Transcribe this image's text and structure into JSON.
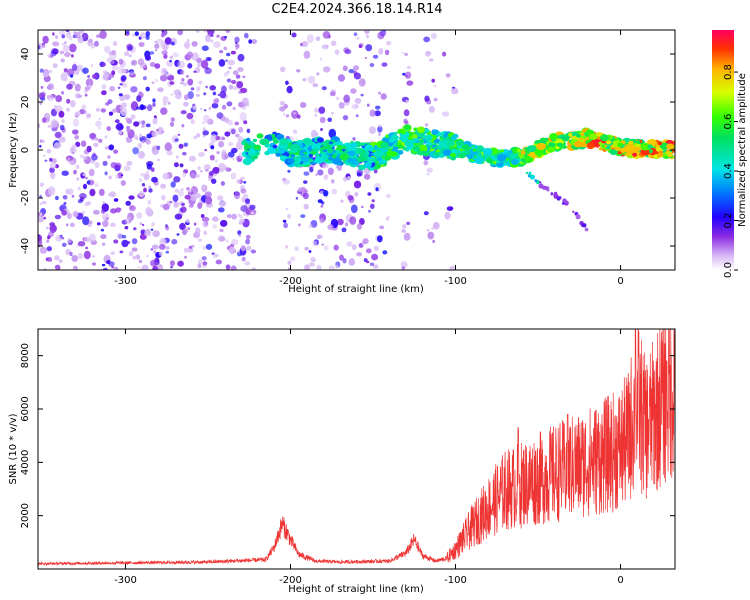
{
  "title": "C2E4.2024.366.18.14.R14",
  "chart_data": [
    {
      "type": "heatmap",
      "name": "spectrogram",
      "xlabel": "Height of straight line (km)",
      "ylabel": "Frequency (Hz)",
      "xlim": [
        -353,
        33
      ],
      "ylim": [
        -50,
        50
      ],
      "xticks": [
        -300,
        -200,
        -100,
        0
      ],
      "yticks": [
        -40,
        -20,
        0,
        20,
        40
      ],
      "colorbar": {
        "label": "Normalized spectral amplitude",
        "range": [
          0,
          0.97
        ],
        "ticks": [
          0.0,
          0.2,
          0.4,
          0.6,
          0.8
        ]
      },
      "gaps_x": [
        [
          -222,
          -205
        ],
        [
          -140,
          -132
        ],
        [
          -127,
          -118
        ]
      ],
      "ridge": [
        {
          "x": -225,
          "y": 0
        },
        {
          "x": -210,
          "y": 4
        },
        {
          "x": -200,
          "y": -2
        },
        {
          "x": -180,
          "y": 0
        },
        {
          "x": -150,
          "y": -3
        },
        {
          "x": -130,
          "y": 5
        },
        {
          "x": -100,
          "y": 1
        },
        {
          "x": -80,
          "y": -3
        },
        {
          "x": -60,
          "y": -3
        },
        {
          "x": -40,
          "y": 3
        },
        {
          "x": -20,
          "y": 5
        },
        {
          "x": 0,
          "y": 1
        },
        {
          "x": 30,
          "y": 0
        }
      ],
      "tail": [
        {
          "x": -58,
          "y": -8
        },
        {
          "x": -52,
          "y": -12
        },
        {
          "x": -30,
          "y": -24
        },
        {
          "x": -20,
          "y": -34
        }
      ]
    },
    {
      "type": "line",
      "name": "snr",
      "xlabel": "Height of straight line (km)",
      "ylabel": "SNR (10 * v/v)",
      "xlim": [
        -353,
        33
      ],
      "ylim": [
        0,
        9000
      ],
      "xticks": [
        -300,
        -200,
        -100,
        0
      ],
      "yticks": [
        2000,
        4000,
        6000,
        8000
      ],
      "color": "#ee3333",
      "series": [
        {
          "x": [
            -353,
            -300,
            -250,
            -215,
            -210,
            -205,
            -200,
            -195,
            -185,
            -170,
            -140,
            -130,
            -125,
            -120,
            -112,
            -105,
            -100,
            -90,
            -80,
            -70,
            -60,
            -50,
            -40,
            -30,
            -20,
            -10,
            0,
            5,
            10,
            15,
            20,
            25,
            33
          ],
          "y": [
            200,
            230,
            260,
            350,
            800,
            1700,
            1100,
            550,
            300,
            260,
            300,
            600,
            1100,
            500,
            300,
            400,
            700,
            1500,
            2200,
            2800,
            3000,
            3200,
            3400,
            3600,
            3800,
            4000,
            4300,
            4700,
            6000,
            5000,
            5400,
            6000,
            6600
          ]
        }
      ],
      "peaks": [
        {
          "x": -62,
          "y": 5300
        },
        {
          "x": -32,
          "y": 5800
        },
        {
          "x": -28,
          "y": 4500
        },
        {
          "x": 9,
          "y": 9000
        },
        {
          "x": 28,
          "y": 7800
        }
      ]
    }
  ]
}
